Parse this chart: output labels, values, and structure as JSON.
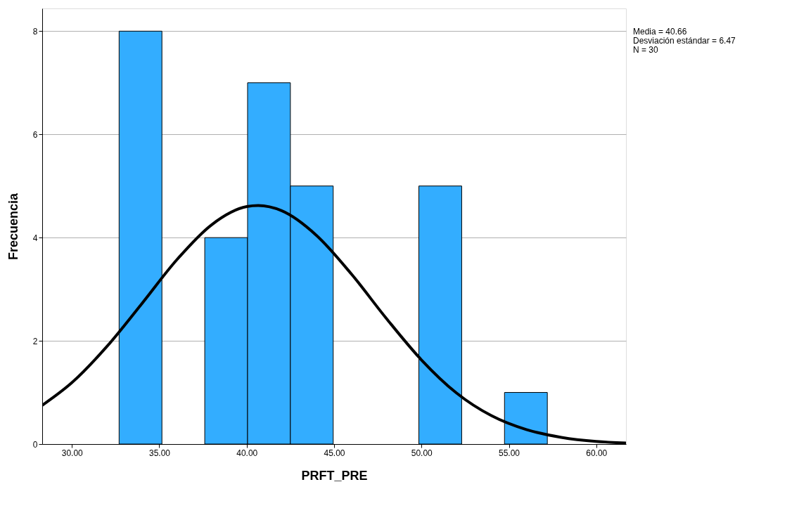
{
  "chart_data": {
    "type": "histogram",
    "xlabel": "PRFT_PRE",
    "ylabel": "Frecuencia",
    "bins": [
      32.7,
      35.15,
      37.6,
      40.05,
      42.5,
      44.95,
      47.4,
      49.85,
      52.3,
      54.75,
      57.2
    ],
    "values": [
      8,
      0,
      4,
      7,
      5,
      0,
      0,
      5,
      0,
      1
    ],
    "color": "#33adff",
    "series": [
      {
        "type": "line",
        "color": "#000000",
        "x": [
          28.3,
          30,
          32,
          34,
          36,
          38,
          40,
          40.66,
          42,
          44,
          46,
          48,
          50,
          52,
          54,
          56,
          58,
          60,
          61.7
        ],
        "values": [
          0.75,
          1.19,
          1.89,
          2.72,
          3.57,
          4.25,
          4.6,
          4.62,
          4.52,
          4.04,
          3.29,
          2.43,
          1.63,
          0.99,
          0.55,
          0.28,
          0.13,
          0.05,
          0.02
        ]
      }
    ],
    "xlim": [
      28.3,
      61.7
    ],
    "xticks": [
      {
        "value": 30,
        "label": "30.00"
      },
      {
        "value": 35,
        "label": "35.00"
      },
      {
        "value": 40,
        "label": "40.00"
      },
      {
        "value": 45,
        "label": "45.00"
      },
      {
        "value": 50,
        "label": "50.00"
      },
      {
        "value": 55,
        "label": "55.00"
      },
      {
        "value": 60,
        "label": "60.00"
      }
    ],
    "ylim": [
      0,
      8.44
    ],
    "yticks": [
      0,
      2,
      4,
      6,
      8
    ],
    "grid": "y",
    "annotations": [
      "Media = 40.66",
      "Desviación estándar = 6.47",
      "N = 30"
    ]
  }
}
